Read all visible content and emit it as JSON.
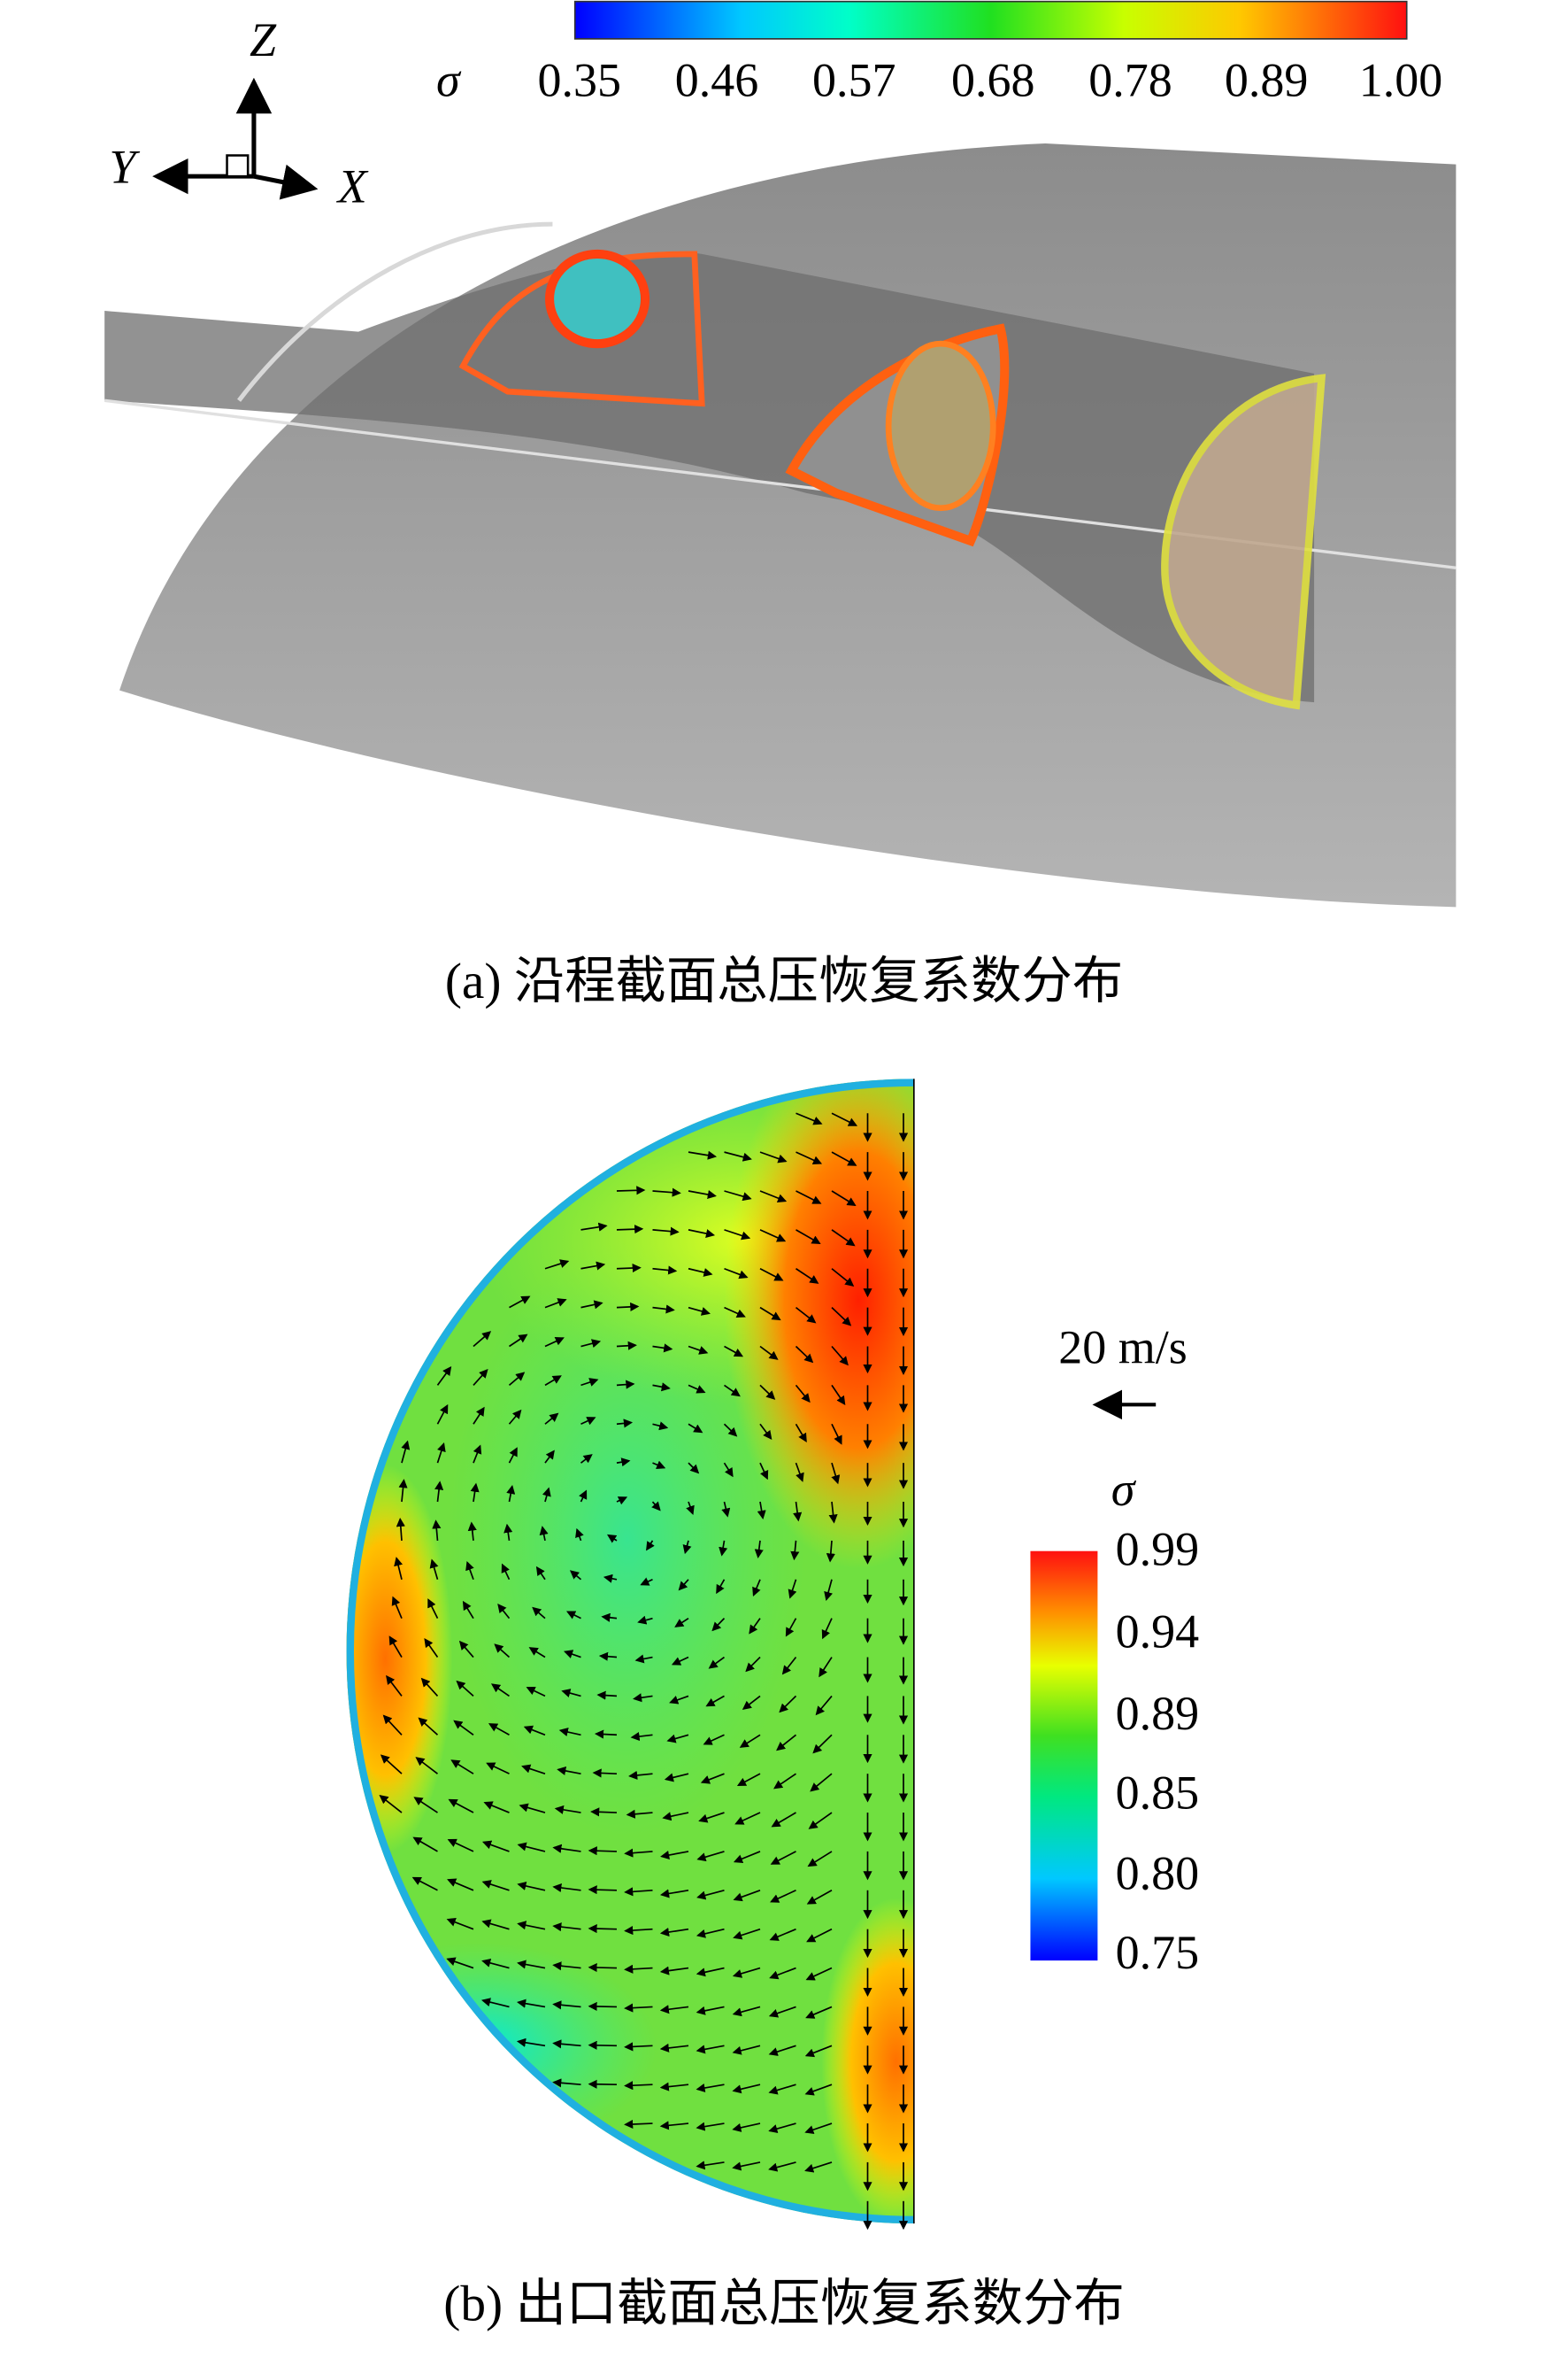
{
  "panel_a": {
    "colorbar": {
      "symbol": "σ",
      "ticks": [
        "0.35",
        "0.46",
        "0.57",
        "0.68",
        "0.78",
        "0.89",
        "1.00"
      ]
    },
    "axes": {
      "z": "Z",
      "y": "Y",
      "x": "X"
    },
    "caption": "(a) 沿程截面总压恢复系数分布"
  },
  "panel_b": {
    "scale_label": "20 m/s",
    "colorbar": {
      "symbol": "σ",
      "ticks": [
        "0.99",
        "0.94",
        "0.89",
        "0.85",
        "0.80",
        "0.75"
      ]
    },
    "caption": "(b) 出口截面总压恢复系数分布"
  }
}
